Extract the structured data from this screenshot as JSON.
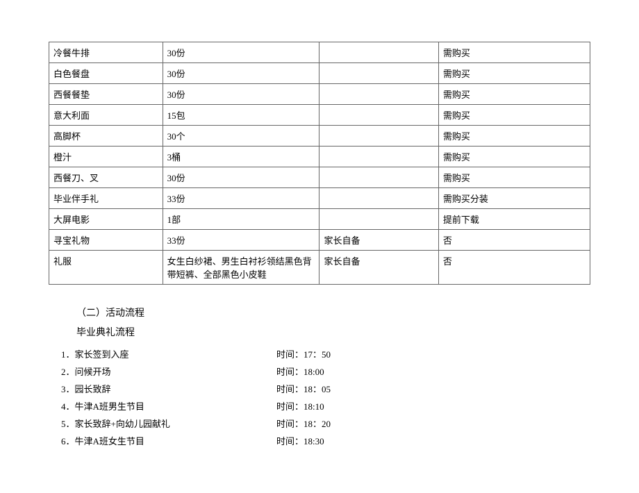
{
  "table": {
    "rows": [
      {
        "item": "冷餐牛排",
        "qty": "30份",
        "note": "",
        "buy": "需购买"
      },
      {
        "item": "白色餐盘",
        "qty": "30份",
        "note": "",
        "buy": "需购买"
      },
      {
        "item": "西餐餐垫",
        "qty": "30份",
        "note": "",
        "buy": "需购买"
      },
      {
        "item": "意大利面",
        "qty": "15包",
        "note": "",
        "buy": "需购买"
      },
      {
        "item": "高脚杯",
        "qty": "30个",
        "note": "",
        "buy": "需购买"
      },
      {
        "item": "橙汁",
        "qty": "3桶",
        "note": "",
        "buy": "需购买"
      },
      {
        "item": "西餐刀、叉",
        "qty": "30份",
        "note": "",
        "buy": "需购买"
      },
      {
        "item": "毕业伴手礼",
        "qty": "33份",
        "note": "",
        "buy": "需购买分装"
      },
      {
        "item": "大屏电影",
        "qty": "1部",
        "note": "",
        "buy": "提前下载"
      },
      {
        "item": "寻宝礼物",
        "qty": "33份",
        "note": "家长自备",
        "buy": "否"
      },
      {
        "item": "礼服",
        "qty": "女生白纱裙、男生白衬衫领结黑色背带短裤、全部黑色小皮鞋",
        "note": "家长自备",
        "buy": "否",
        "tall": true
      }
    ]
  },
  "headings": {
    "section": "（二）活动流程",
    "sub": "毕业典礼流程"
  },
  "schedule": [
    {
      "label": "1．家长签到入座",
      "time": "时间：17：50"
    },
    {
      "label": "2．问候开场",
      "time": "时间：18:00"
    },
    {
      "label": "3．园长致辞",
      "time": "时间：18：05"
    },
    {
      "label": "4．牛津A班男生节目",
      "time": "时间：18:10"
    },
    {
      "label": "5．家长致辞+向幼儿园献礼",
      "time": "时间：18：20"
    },
    {
      "label": "6．牛津A班女生节目",
      "time": "时间：18:30"
    }
  ]
}
